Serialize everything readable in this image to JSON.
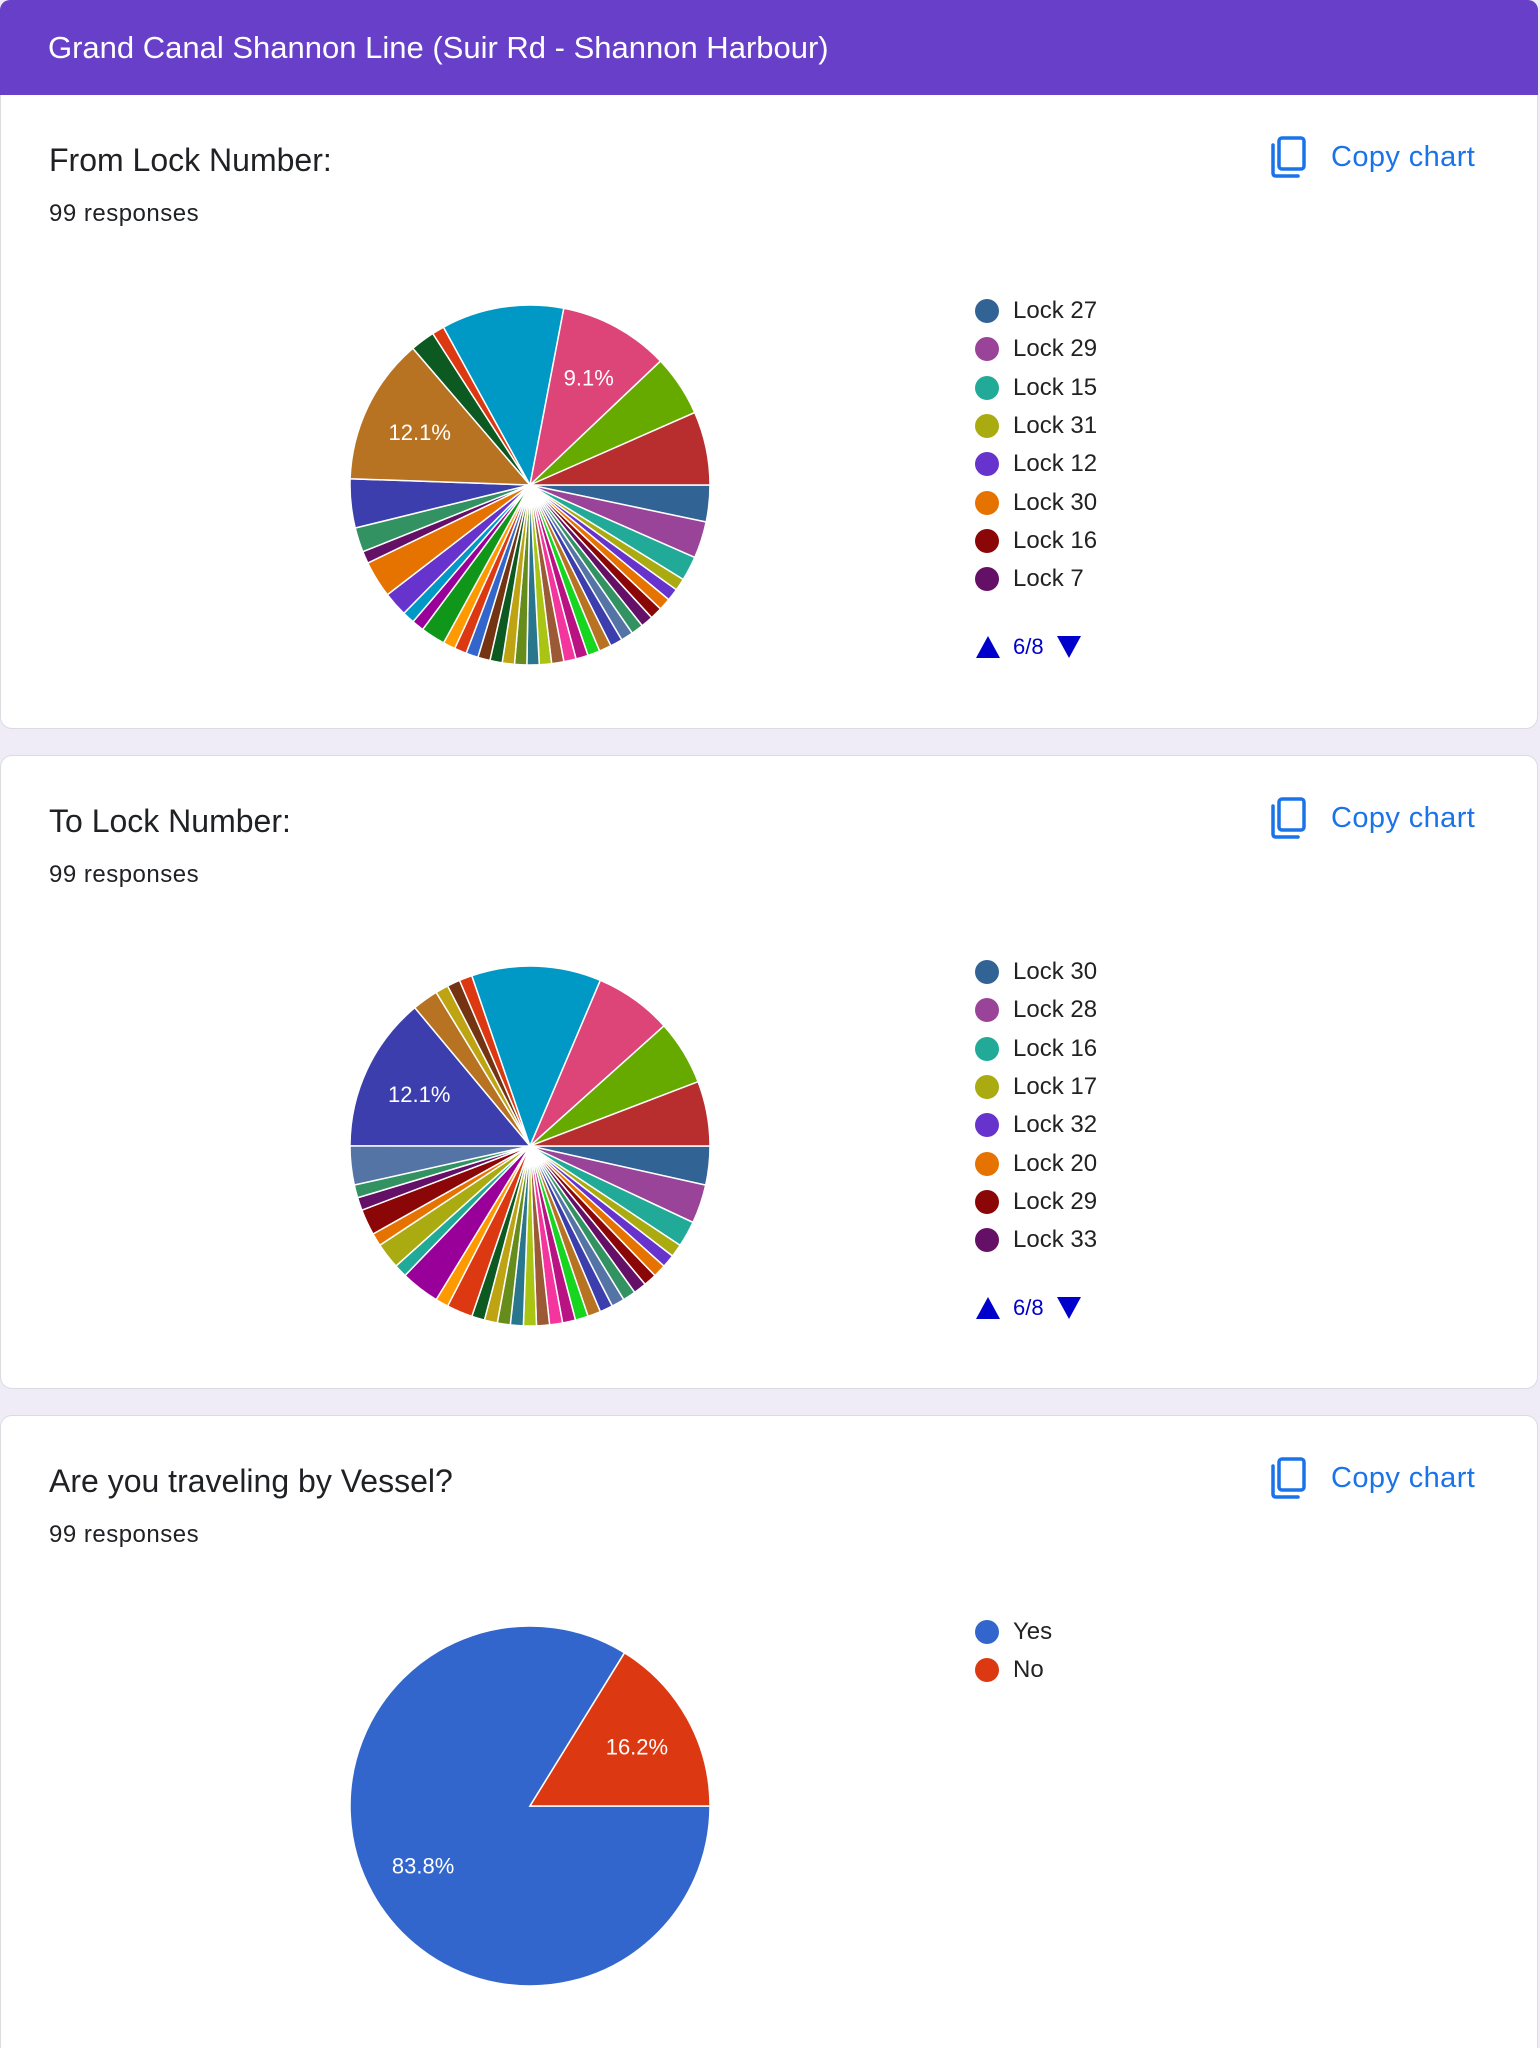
{
  "header": {
    "title": "Grand Canal Shannon Line (Suir Rd - Shannon Harbour)"
  },
  "questions": [
    {
      "title": "From Lock Number:",
      "responses": "99 responses",
      "copy_label": "Copy chart",
      "legend_visible": [
        "Lock 27",
        "Lock 29",
        "Lock 15",
        "Lock 31",
        "Lock 12",
        "Lock 30",
        "Lock 16",
        "Lock 7"
      ],
      "pager": "6/8",
      "slice_labels": [
        "9.1%",
        "12.1%"
      ]
    },
    {
      "title": "To Lock Number:",
      "responses": "99 responses",
      "copy_label": "Copy chart",
      "legend_visible": [
        "Lock 30",
        "Lock 28",
        "Lock 16",
        "Lock 17",
        "Lock 32",
        "Lock 20",
        "Lock 29",
        "Lock 33"
      ],
      "pager": "6/8",
      "slice_labels": [
        "12.1%"
      ]
    },
    {
      "title": "Are you traveling by Vessel?",
      "responses": "99 responses",
      "copy_label": "Copy chart",
      "legend_visible": [
        "Yes",
        "No"
      ],
      "pager": "",
      "slice_labels": [
        "83.8%",
        "16.2%"
      ]
    }
  ],
  "chart_data": [
    {
      "type": "pie",
      "title": "From Lock Number:",
      "legend_position": "right",
      "slices": [
        {
          "label": "",
          "value": 3.03,
          "color": "#316395"
        },
        {
          "label": "",
          "value": 3.03,
          "color": "#994499"
        },
        {
          "label": "",
          "value": 2.02,
          "color": "#22aa99"
        },
        {
          "label": "",
          "value": 1.01,
          "color": "#aaaa11"
        },
        {
          "label": "",
          "value": 1.01,
          "color": "#6633cc"
        },
        {
          "label": "",
          "value": 1.01,
          "color": "#e67300"
        },
        {
          "label": "",
          "value": 1.01,
          "color": "#8b0707"
        },
        {
          "label": "",
          "value": 1.01,
          "color": "#651067"
        },
        {
          "label": "",
          "value": 1.01,
          "color": "#329262"
        },
        {
          "label": "",
          "value": 1.01,
          "color": "#5574a6"
        },
        {
          "label": "",
          "value": 1.01,
          "color": "#3b3eac"
        },
        {
          "label": "",
          "value": 1.01,
          "color": "#b77322"
        },
        {
          "label": "",
          "value": 1.01,
          "color": "#16d620"
        },
        {
          "label": "",
          "value": 1.01,
          "color": "#b91383"
        },
        {
          "label": "",
          "value": 1.01,
          "color": "#f4359e"
        },
        {
          "label": "",
          "value": 1.01,
          "color": "#9c5935"
        },
        {
          "label": "",
          "value": 1.01,
          "color": "#a9c413"
        },
        {
          "label": "",
          "value": 1.01,
          "color": "#2a778d"
        },
        {
          "label": "",
          "value": 1.01,
          "color": "#668d1c"
        },
        {
          "label": "",
          "value": 1.01,
          "color": "#bea413"
        },
        {
          "label": "",
          "value": 1.01,
          "color": "#0c5922"
        },
        {
          "label": "",
          "value": 1.01,
          "color": "#743411"
        },
        {
          "label": "",
          "value": 1.01,
          "color": "#3366cc"
        },
        {
          "label": "",
          "value": 1.01,
          "color": "#dc3912"
        },
        {
          "label": "",
          "value": 1.01,
          "color": "#ff9900"
        },
        {
          "label": "",
          "value": 2.02,
          "color": "#109618"
        },
        {
          "label": "",
          "value": 1.01,
          "color": "#990099"
        },
        {
          "label": "",
          "value": 1.01,
          "color": "#0099c6"
        },
        {
          "label": "",
          "value": 2.02,
          "color": "#6633cc"
        },
        {
          "label": "",
          "value": 3.03,
          "color": "#e67300"
        },
        {
          "label": "",
          "value": 1.01,
          "color": "#651067"
        },
        {
          "label": "",
          "value": 2.02,
          "color": "#329262"
        },
        {
          "label": "",
          "value": 4.04,
          "color": "#3b3eac"
        },
        {
          "label": "",
          "value": 12.1,
          "color": "#b77322"
        },
        {
          "label": "",
          "value": 2.02,
          "color": "#0c5922"
        },
        {
          "label": "",
          "value": 1.01,
          "color": "#dc3912"
        },
        {
          "label": "",
          "value": 10.1,
          "color": "#0099c6"
        },
        {
          "label": "",
          "value": 9.1,
          "color": "#dd4477"
        },
        {
          "label": "",
          "value": 5.05,
          "color": "#66aa00"
        },
        {
          "label": "",
          "value": 6.06,
          "color": "#b82e2e"
        }
      ]
    },
    {
      "type": "pie",
      "title": "To Lock Number:",
      "legend_position": "right",
      "slices": [
        {
          "label": "",
          "value": 3.03,
          "color": "#316395"
        },
        {
          "label": "",
          "value": 3.03,
          "color": "#994499"
        },
        {
          "label": "",
          "value": 2.02,
          "color": "#22aa99"
        },
        {
          "label": "",
          "value": 1.01,
          "color": "#aaaa11"
        },
        {
          "label": "",
          "value": 1.01,
          "color": "#6633cc"
        },
        {
          "label": "",
          "value": 1.01,
          "color": "#e67300"
        },
        {
          "label": "",
          "value": 1.01,
          "color": "#8b0707"
        },
        {
          "label": "",
          "value": 1.01,
          "color": "#651067"
        },
        {
          "label": "",
          "value": 1.01,
          "color": "#329262"
        },
        {
          "label": "",
          "value": 1.01,
          "color": "#5574a6"
        },
        {
          "label": "",
          "value": 1.01,
          "color": "#3b3eac"
        },
        {
          "label": "",
          "value": 1.01,
          "color": "#b77322"
        },
        {
          "label": "",
          "value": 1.01,
          "color": "#16d620"
        },
        {
          "label": "",
          "value": 1.01,
          "color": "#b91383"
        },
        {
          "label": "",
          "value": 1.01,
          "color": "#f4359e"
        },
        {
          "label": "",
          "value": 1.01,
          "color": "#9c5935"
        },
        {
          "label": "",
          "value": 1.01,
          "color": "#a9c413"
        },
        {
          "label": "",
          "value": 1.01,
          "color": "#2a778d"
        },
        {
          "label": "",
          "value": 1.01,
          "color": "#668d1c"
        },
        {
          "label": "",
          "value": 1.01,
          "color": "#bea413"
        },
        {
          "label": "",
          "value": 1.01,
          "color": "#0c5922"
        },
        {
          "label": "",
          "value": 2.02,
          "color": "#dc3912"
        },
        {
          "label": "",
          "value": 1.01,
          "color": "#ff9900"
        },
        {
          "label": "",
          "value": 3.03,
          "color": "#990099"
        },
        {
          "label": "",
          "value": 1.01,
          "color": "#22aa99"
        },
        {
          "label": "",
          "value": 2.02,
          "color": "#aaaa11"
        },
        {
          "label": "",
          "value": 1.01,
          "color": "#e67300"
        },
        {
          "label": "",
          "value": 2.02,
          "color": "#8b0707"
        },
        {
          "label": "",
          "value": 1.01,
          "color": "#651067"
        },
        {
          "label": "",
          "value": 1.01,
          "color": "#329262"
        },
        {
          "label": "",
          "value": 3.03,
          "color": "#5574a6"
        },
        {
          "label": "",
          "value": 12.1,
          "color": "#3b3eac"
        },
        {
          "label": "",
          "value": 2.02,
          "color": "#b77322"
        },
        {
          "label": "",
          "value": 1.01,
          "color": "#bea413"
        },
        {
          "label": "",
          "value": 1.01,
          "color": "#743411"
        },
        {
          "label": "",
          "value": 1.01,
          "color": "#dc3912"
        },
        {
          "label": "",
          "value": 10.1,
          "color": "#0099c6"
        },
        {
          "label": "",
          "value": 6.06,
          "color": "#dd4477"
        },
        {
          "label": "",
          "value": 5.05,
          "color": "#66aa00"
        },
        {
          "label": "",
          "value": 5.05,
          "color": "#b82e2e"
        }
      ]
    },
    {
      "type": "pie",
      "title": "Are you traveling by Vessel?",
      "legend_position": "right",
      "slices": [
        {
          "label": "Yes",
          "value": 83.8,
          "color": "#3366cc"
        },
        {
          "label": "No",
          "value": 16.2,
          "color": "#dc3912"
        }
      ]
    }
  ],
  "legend_colors": [
    [
      "#316395",
      "#994499",
      "#22aa99",
      "#aaaa11",
      "#6633cc",
      "#e67300",
      "#8b0707",
      "#651067"
    ],
    [
      "#316395",
      "#994499",
      "#22aa99",
      "#aaaa11",
      "#6633cc",
      "#e67300",
      "#8b0707",
      "#651067"
    ],
    [
      "#3366cc",
      "#dc3912"
    ]
  ],
  "colors": {
    "header_bg": "#673fc9",
    "accent": "#1a73e8",
    "pager": "#0000cc"
  },
  "icons": {
    "copy": "copy-icon",
    "pager_up": "triangle-up-icon",
    "pager_down": "triangle-down-icon"
  }
}
